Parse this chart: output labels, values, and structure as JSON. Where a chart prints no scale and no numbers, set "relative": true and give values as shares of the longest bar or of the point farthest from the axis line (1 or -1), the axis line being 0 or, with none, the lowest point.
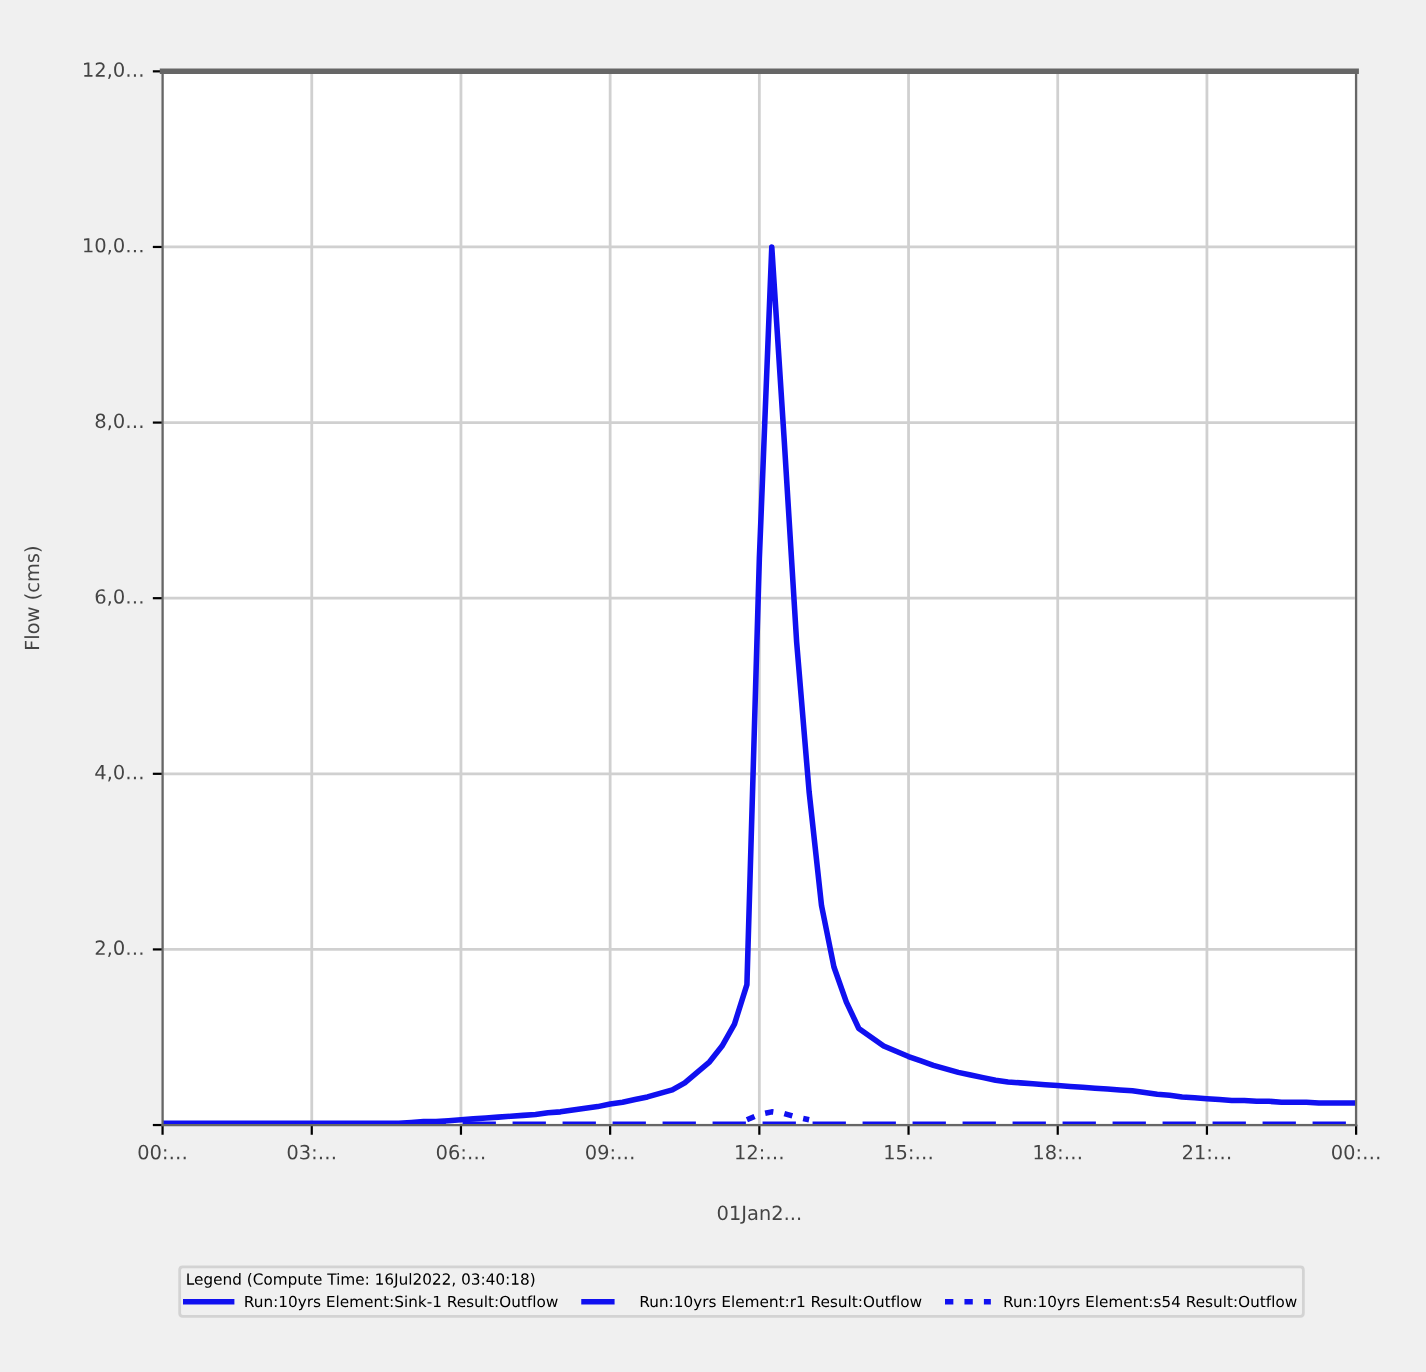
{
  "chart_data": {
    "type": "line",
    "relative": true,
    "ylabel": "Flow (cms)",
    "legend_title": "Legend (Compute Time: 16Jul2022, 03:40:18)",
    "annotations": [
      "01Jan2...",
      "2,0…",
      "4,0…",
      "6,0…",
      "8,0…",
      "10,0…",
      "12,0…"
    ],
    "categories": [
      "00:…",
      null,
      null,
      null,
      null,
      null,
      null,
      null,
      null,
      null,
      null,
      null,
      "03:…",
      null,
      null,
      null,
      null,
      null,
      null,
      null,
      null,
      null,
      null,
      null,
      "06:…",
      null,
      null,
      null,
      null,
      null,
      null,
      null,
      null,
      null,
      null,
      null,
      "09:…",
      null,
      null,
      null,
      null,
      null,
      null,
      null,
      null,
      null,
      null,
      null,
      "12:…",
      null,
      null,
      null,
      null,
      null,
      null,
      null,
      null,
      null,
      null,
      null,
      "15:…",
      null,
      null,
      null,
      null,
      null,
      null,
      null,
      null,
      null,
      null,
      null,
      "18:…",
      null,
      null,
      null,
      null,
      null,
      null,
      null,
      null,
      null,
      null,
      null,
      "21:…",
      null,
      null,
      null,
      null,
      null,
      null,
      null,
      null,
      null,
      null,
      null,
      "00:…"
    ],
    "grid": true,
    "legend": "bottom",
    "series": [
      {
        "name": "Run:10yrs Element:Sink-1 Result:Outflow",
        "color": "#1010f0",
        "line_style": "solid",
        "values": [
          0.002,
          0.002,
          0.002,
          0.002,
          0.002,
          0.002,
          0.002,
          0.002,
          0.002,
          0.002,
          0.002,
          0.002,
          0.002,
          0.002,
          0.002,
          0.002,
          0.002,
          0.002,
          0.002,
          0.002,
          0.003,
          0.004,
          0.004,
          0.005,
          0.006,
          0.007,
          0.008,
          0.009,
          0.01,
          0.011,
          0.012,
          0.014,
          0.015,
          0.017,
          0.019,
          0.021,
          0.024,
          0.026,
          0.029,
          0.032,
          0.036,
          0.04,
          0.048,
          0.06,
          0.072,
          0.09,
          0.115,
          0.16,
          0.645,
          1.0,
          0.78,
          0.55,
          0.38,
          0.25,
          0.18,
          0.14,
          0.11,
          0.1,
          0.09,
          0.084,
          0.078,
          0.073,
          0.068,
          0.064,
          0.06,
          0.057,
          0.054,
          0.051,
          0.049,
          0.048,
          0.047,
          0.046,
          0.045,
          0.044,
          0.043,
          0.042,
          0.041,
          0.04,
          0.039,
          0.037,
          0.035,
          0.034,
          0.032,
          0.031,
          0.03,
          0.029,
          0.028,
          0.028,
          0.027,
          0.027,
          0.026,
          0.026,
          0.026,
          0.025,
          0.025,
          0.025,
          0.025
        ]
      },
      {
        "name": "Run:10yrs Element:r1 Result:Outflow",
        "color": "#1010f0",
        "line_style": "dashed",
        "values": [
          0.001,
          0.001,
          0.001,
          0.001,
          0.001,
          0.001,
          0.001,
          0.001,
          0.001,
          0.001,
          0.001,
          0.001,
          0.001,
          0.001,
          0.001,
          0.001,
          0.001,
          0.001,
          0.001,
          0.001,
          0.001,
          0.001,
          0.001,
          0.001,
          0.001,
          0.001,
          0.001,
          0.001,
          0.001,
          0.001,
          0.001,
          0.001,
          0.001,
          0.001,
          0.001,
          0.001,
          0.001,
          0.001,
          0.001,
          0.001,
          0.001,
          0.001,
          0.001,
          0.001,
          0.001,
          0.001,
          0.001,
          0.001,
          0.001,
          0.001,
          0.001,
          0.001,
          0.001,
          0.001,
          0.001,
          0.001,
          0.001,
          0.001,
          0.001,
          0.001,
          0.001,
          0.001,
          0.001,
          0.001,
          0.001,
          0.001,
          0.001,
          0.001,
          0.001,
          0.001,
          0.001,
          0.001,
          0.001,
          0.001,
          0.001,
          0.001,
          0.001,
          0.001,
          0.001,
          0.001,
          0.001,
          0.001,
          0.001,
          0.001,
          0.001,
          0.001,
          0.001,
          0.001,
          0.001,
          0.001,
          0.001,
          0.001,
          0.001,
          0.001,
          0.001,
          0.001,
          0.001
        ]
      },
      {
        "name": "Run:10yrs Element:s54 Result:Outflow",
        "color": "#1010f0",
        "line_style": "dotted",
        "values": [
          null,
          null,
          null,
          null,
          null,
          null,
          null,
          null,
          null,
          null,
          null,
          null,
          null,
          null,
          null,
          null,
          null,
          null,
          null,
          null,
          null,
          null,
          null,
          null,
          null,
          null,
          null,
          null,
          null,
          null,
          null,
          null,
          null,
          null,
          null,
          null,
          null,
          null,
          null,
          null,
          null,
          null,
          null,
          null,
          null,
          null,
          null,
          0.006,
          0.012,
          0.015,
          0.013,
          0.009,
          0.006,
          null,
          null,
          null,
          null,
          null,
          null,
          null,
          null,
          null,
          null,
          null,
          null,
          null,
          null,
          null,
          null,
          null,
          null,
          null,
          null,
          null,
          null,
          null,
          null,
          null,
          null,
          null,
          null,
          null,
          null,
          null,
          null,
          null,
          null,
          null,
          null,
          null,
          null,
          null,
          null,
          null,
          null,
          null,
          null
        ]
      }
    ]
  }
}
